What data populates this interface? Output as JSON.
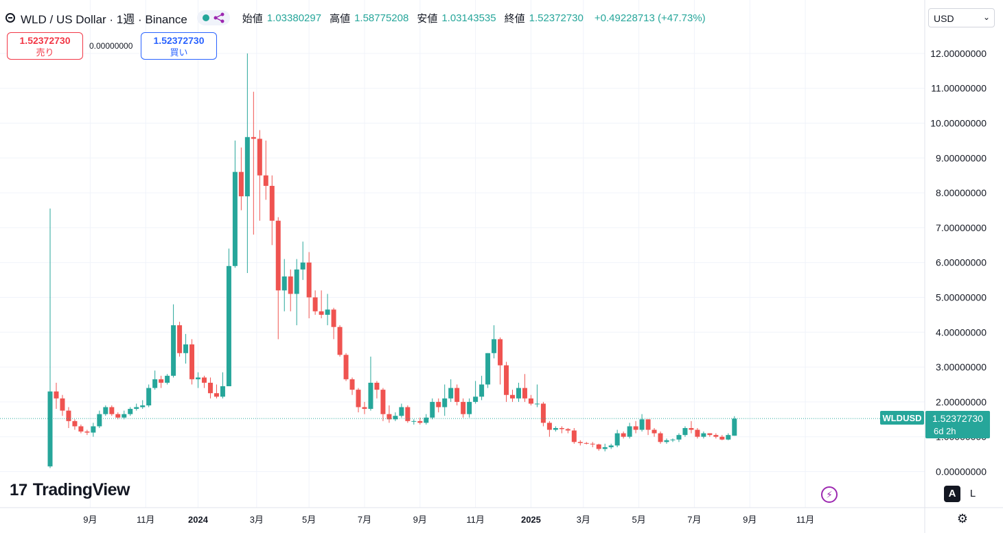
{
  "header": {
    "title": "WLD / US Dollar · 1週 · Binance",
    "open_label": "始値",
    "open": "1.03380297",
    "high_label": "高値",
    "high": "1.58775208",
    "low_label": "安値",
    "low": "1.03143535",
    "close_label": "終値",
    "close": "1.52372730",
    "change": "+0.49228713 (+47.73%)"
  },
  "trade": {
    "sell_price": "1.52372730",
    "sell_label": "売り",
    "spread": "0.00000000",
    "buy_price": "1.52372730",
    "buy_label": "買い"
  },
  "currency": "USD",
  "brand": "TradingView",
  "buttons": {
    "auto": "A",
    "log": "L"
  },
  "colors": {
    "up": "#26a69a",
    "down": "#ef5350",
    "grid": "#f0f3fa",
    "axis_text": "#131722"
  },
  "icons": [
    "logo-icon",
    "alert-icon",
    "chevron-down-icon",
    "flash-icon",
    "settings-icon"
  ],
  "chart_data": {
    "type": "candlestick",
    "symbol": "WLDUSD",
    "price_tag": "1.52372730",
    "countdown": "6d 2h",
    "ylim": [
      -0.3,
      12.4
    ],
    "y_ticks": [
      {
        "v": 0,
        "label": "0.00000000"
      },
      {
        "v": 1,
        "label": "1.00000000"
      },
      {
        "v": 2,
        "label": "2.00000000"
      },
      {
        "v": 3,
        "label": "3.00000000"
      },
      {
        "v": 4,
        "label": "4.00000000"
      },
      {
        "v": 5,
        "label": "5.00000000"
      },
      {
        "v": 6,
        "label": "6.00000000"
      },
      {
        "v": 7,
        "label": "7.00000000"
      },
      {
        "v": 8,
        "label": "8.00000000"
      },
      {
        "v": 9,
        "label": "9.00000000"
      },
      {
        "v": 10,
        "label": "10.00000000"
      },
      {
        "v": 11,
        "label": "11.00000000"
      },
      {
        "v": 12,
        "label": "12.00000000"
      }
    ],
    "x_ticks": [
      {
        "i": 6.5,
        "label": "9月",
        "bold": false
      },
      {
        "i": 15.5,
        "label": "11月",
        "bold": false
      },
      {
        "i": 24,
        "label": "2024",
        "bold": true
      },
      {
        "i": 33.5,
        "label": "3月",
        "bold": false
      },
      {
        "i": 42,
        "label": "5月",
        "bold": false
      },
      {
        "i": 51,
        "label": "7月",
        "bold": false
      },
      {
        "i": 60,
        "label": "9月",
        "bold": false
      },
      {
        "i": 69,
        "label": "11月",
        "bold": false
      },
      {
        "i": 78,
        "label": "2025",
        "bold": true
      },
      {
        "i": 86.5,
        "label": "3月",
        "bold": false
      },
      {
        "i": 95.5,
        "label": "5月",
        "bold": false
      },
      {
        "i": 104.5,
        "label": "7月",
        "bold": false
      },
      {
        "i": 113.5,
        "label": "9月",
        "bold": false
      },
      {
        "i": 122.5,
        "label": "11月",
        "bold": false
      }
    ],
    "candles": [
      [
        0.15,
        2.3,
        0.1,
        7.55
      ],
      [
        2.3,
        2.1,
        1.8,
        2.55
      ],
      [
        2.1,
        1.75,
        1.6,
        2.2
      ],
      [
        1.75,
        1.45,
        1.25,
        1.85
      ],
      [
        1.45,
        1.3,
        1.2,
        1.5
      ],
      [
        1.3,
        1.15,
        1.1,
        1.35
      ],
      [
        1.15,
        1.12,
        1.05,
        1.2
      ],
      [
        1.12,
        1.3,
        1.0,
        1.4
      ],
      [
        1.3,
        1.65,
        1.25,
        1.75
      ],
      [
        1.65,
        1.85,
        1.6,
        1.9
      ],
      [
        1.85,
        1.65,
        1.6,
        1.9
      ],
      [
        1.65,
        1.55,
        1.5,
        1.7
      ],
      [
        1.55,
        1.65,
        1.5,
        1.75
      ],
      [
        1.65,
        1.8,
        1.6,
        1.85
      ],
      [
        1.8,
        1.85,
        1.75,
        1.95
      ],
      [
        1.85,
        1.9,
        1.8,
        2.05
      ],
      [
        1.9,
        2.4,
        1.85,
        2.5
      ],
      [
        2.4,
        2.65,
        2.35,
        2.9
      ],
      [
        2.65,
        2.55,
        2.4,
        2.75
      ],
      [
        2.55,
        2.75,
        2.5,
        2.8
      ],
      [
        2.75,
        4.2,
        2.7,
        4.8
      ],
      [
        4.2,
        3.4,
        3.3,
        4.3
      ],
      [
        3.4,
        3.65,
        3.1,
        3.95
      ],
      [
        3.65,
        2.65,
        2.5,
        3.8
      ],
      [
        2.65,
        2.7,
        2.4,
        2.85
      ],
      [
        2.7,
        2.55,
        2.4,
        2.75
      ],
      [
        2.55,
        2.25,
        2.1,
        2.7
      ],
      [
        2.25,
        2.15,
        2.1,
        2.5
      ],
      [
        2.15,
        2.45,
        2.1,
        2.85
      ],
      [
        2.45,
        5.9,
        2.45,
        6.4
      ],
      [
        5.9,
        8.6,
        5.85,
        9.5
      ],
      [
        8.6,
        7.9,
        7.5,
        9.3
      ],
      [
        7.9,
        9.6,
        5.7,
        12.0
      ],
      [
        9.6,
        9.55,
        6.8,
        10.9
      ],
      [
        9.55,
        8.5,
        7.2,
        9.8
      ],
      [
        8.5,
        8.2,
        7.8,
        9.5
      ],
      [
        8.2,
        7.2,
        6.5,
        8.5
      ],
      [
        7.2,
        5.2,
        3.8,
        7.3
      ],
      [
        5.2,
        5.6,
        4.6,
        6.1
      ],
      [
        5.6,
        5.1,
        4.6,
        5.8
      ],
      [
        5.1,
        5.8,
        4.2,
        6.1
      ],
      [
        5.8,
        6.0,
        5.5,
        6.6
      ],
      [
        6.0,
        5.0,
        4.4,
        6.3
      ],
      [
        5.0,
        4.6,
        4.5,
        5.2
      ],
      [
        4.6,
        4.5,
        4.4,
        5.2
      ],
      [
        4.5,
        4.65,
        4.2,
        5.1
      ],
      [
        4.65,
        4.15,
        3.8,
        4.7
      ],
      [
        4.15,
        3.35,
        3.3,
        4.2
      ],
      [
        3.35,
        2.65,
        2.6,
        3.4
      ],
      [
        2.65,
        2.35,
        2.2,
        2.7
      ],
      [
        2.35,
        1.85,
        1.7,
        2.4
      ],
      [
        1.85,
        1.8,
        1.65,
        2.0
      ],
      [
        1.8,
        2.55,
        1.75,
        3.3
      ],
      [
        2.55,
        2.35,
        2.1,
        2.6
      ],
      [
        2.35,
        1.65,
        1.45,
        2.4
      ],
      [
        1.65,
        1.5,
        1.4,
        1.9
      ],
      [
        1.5,
        1.6,
        1.45,
        1.7
      ],
      [
        1.6,
        1.85,
        1.55,
        1.95
      ],
      [
        1.85,
        1.45,
        1.4,
        1.9
      ],
      [
        1.45,
        1.45,
        1.35,
        1.5
      ],
      [
        1.45,
        1.4,
        1.35,
        1.55
      ],
      [
        1.4,
        1.55,
        1.35,
        1.65
      ],
      [
        1.55,
        2.0,
        1.5,
        2.1
      ],
      [
        2.0,
        1.85,
        1.7,
        2.1
      ],
      [
        1.85,
        2.1,
        1.6,
        2.5
      ],
      [
        2.1,
        2.4,
        2.0,
        2.65
      ],
      [
        2.4,
        2.0,
        1.9,
        2.5
      ],
      [
        2.0,
        1.65,
        1.55,
        2.1
      ],
      [
        1.65,
        2.0,
        1.55,
        2.1
      ],
      [
        2.0,
        2.15,
        1.95,
        2.6
      ],
      [
        2.15,
        2.5,
        2.05,
        2.75
      ],
      [
        2.5,
        3.4,
        2.4,
        3.4
      ],
      [
        3.4,
        3.8,
        3.25,
        4.2
      ],
      [
        3.8,
        3.05,
        2.5,
        3.85
      ],
      [
        3.05,
        2.2,
        2.0,
        3.15
      ],
      [
        2.2,
        2.1,
        2.0,
        2.35
      ],
      [
        2.1,
        2.4,
        2.0,
        2.55
      ],
      [
        2.4,
        2.1,
        2.0,
        2.8
      ],
      [
        2.1,
        1.95,
        1.9,
        2.2
      ],
      [
        1.95,
        1.95,
        1.85,
        2.5
      ],
      [
        1.95,
        1.4,
        1.3,
        2.0
      ],
      [
        1.4,
        1.2,
        1.0,
        1.45
      ],
      [
        1.2,
        1.25,
        1.15,
        1.3
      ],
      [
        1.25,
        1.22,
        1.1,
        1.3
      ],
      [
        1.22,
        1.18,
        1.1,
        1.25
      ],
      [
        1.18,
        0.85,
        0.8,
        1.25
      ],
      [
        0.85,
        0.82,
        0.75,
        0.9
      ],
      [
        0.82,
        0.8,
        0.78,
        0.85
      ],
      [
        0.8,
        0.78,
        0.7,
        0.85
      ],
      [
        0.78,
        0.65,
        0.6,
        0.8
      ],
      [
        0.65,
        0.7,
        0.58,
        0.8
      ],
      [
        0.7,
        0.75,
        0.65,
        0.8
      ],
      [
        0.75,
        1.1,
        0.7,
        1.2
      ],
      [
        1.1,
        1.0,
        0.95,
        1.15
      ],
      [
        1.0,
        1.3,
        0.95,
        1.4
      ],
      [
        1.3,
        1.2,
        1.1,
        1.45
      ],
      [
        1.2,
        1.5,
        1.15,
        1.65
      ],
      [
        1.5,
        1.2,
        1.05,
        1.5
      ],
      [
        1.2,
        1.1,
        1.0,
        1.25
      ],
      [
        1.1,
        0.85,
        0.8,
        1.15
      ],
      [
        0.85,
        0.9,
        0.8,
        0.95
      ],
      [
        0.9,
        0.92,
        0.85,
        0.95
      ],
      [
        0.92,
        1.05,
        0.85,
        1.1
      ],
      [
        1.05,
        1.25,
        1.0,
        1.3
      ],
      [
        1.25,
        1.2,
        1.1,
        1.45
      ],
      [
        1.2,
        1.0,
        0.95,
        1.25
      ],
      [
        1.0,
        1.1,
        0.95,
        1.15
      ],
      [
        1.1,
        1.05,
        1.0,
        1.1
      ],
      [
        1.05,
        1.0,
        0.95,
        1.1
      ],
      [
        1.0,
        0.92,
        0.9,
        1.05
      ],
      [
        0.92,
        1.05,
        0.9,
        1.1
      ],
      [
        1.03,
        1.52,
        1.03,
        1.59
      ]
    ]
  }
}
